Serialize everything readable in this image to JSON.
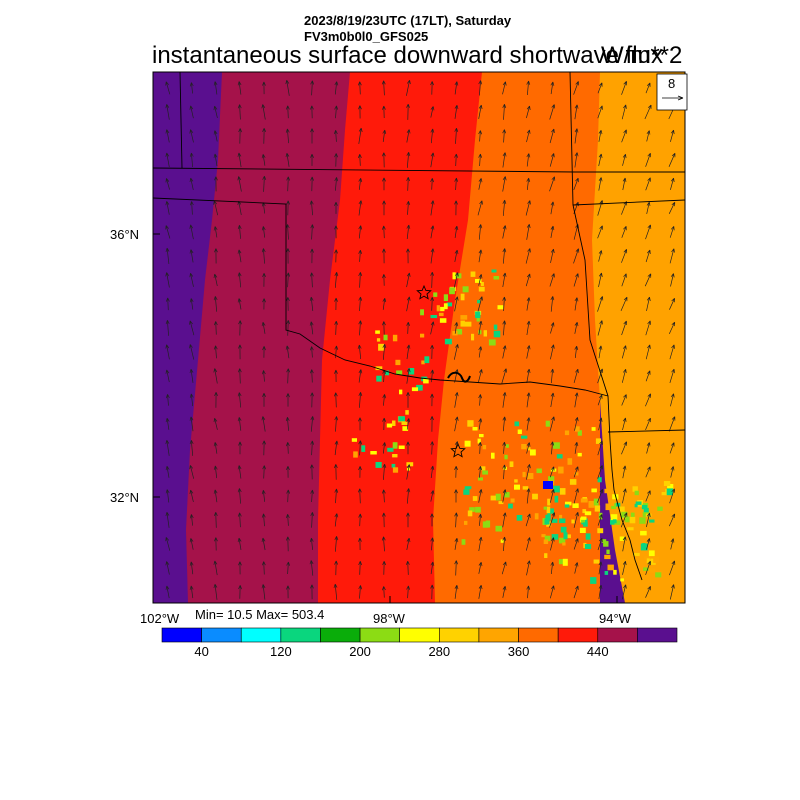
{
  "header": {
    "line1": "2023/8/19/23UTC (17LT), Saturday",
    "line2": "FV3m0b0l0_GFS025"
  },
  "title": "instantaneous surface downward shortwave flux",
  "units": "W/m**2",
  "map": {
    "lat_ticks": [
      "36°N",
      "32°N"
    ],
    "lon_ticks": [
      "102°W",
      "98°W",
      "94°W"
    ],
    "vector_ref_label": "8",
    "wind_direction": "southerly",
    "field_bands": [
      {
        "range": "460-503",
        "color": "#5a0f8f"
      },
      {
        "range": "440-460",
        "color": "#a5124a"
      },
      {
        "range": "400-440",
        "color": "#ff1a0a"
      },
      {
        "range": "360-400",
        "color": "#ff6a00"
      },
      {
        "range": "320-360",
        "color": "#ffa200"
      }
    ]
  },
  "stats": {
    "text": "Min= 10.5 Max= 503.4"
  },
  "colorbar": {
    "colors": [
      "#0000ff",
      "#0a8cff",
      "#00ffff",
      "#0ad67e",
      "#0aad0a",
      "#8cdc14",
      "#ffff00",
      "#ffd200",
      "#ffa500",
      "#ff6a00",
      "#ff1a0a",
      "#a5124a",
      "#5a0f8f"
    ],
    "labels": [
      "40",
      "120",
      "200",
      "280",
      "360",
      "440"
    ]
  }
}
